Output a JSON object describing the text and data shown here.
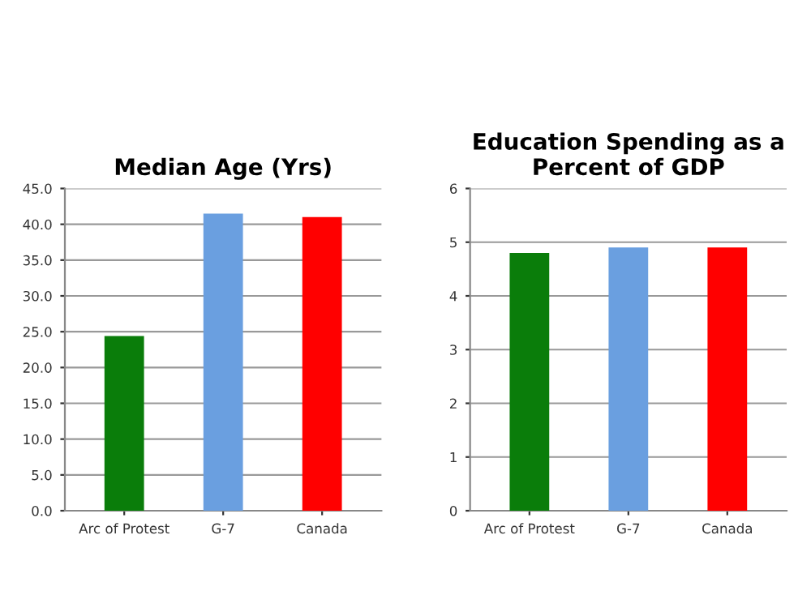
{
  "chart_data": [
    {
      "type": "bar",
      "title": "Median Age (Yrs)",
      "categories": [
        "Arc of Protest",
        "G-7",
        "Canada"
      ],
      "values": [
        24.4,
        41.5,
        41.0
      ],
      "colors": [
        "#0a7d0a",
        "#6a9fe0",
        "#ff0000"
      ],
      "ylim": [
        0,
        45
      ],
      "yticks": [
        {
          "value": 0,
          "label": "0.0"
        },
        {
          "value": 5,
          "label": "5.0"
        },
        {
          "value": 10,
          "label": "10.0"
        },
        {
          "value": 15,
          "label": "15.0"
        },
        {
          "value": 20,
          "label": "20.0"
        },
        {
          "value": 25,
          "label": "25.0"
        },
        {
          "value": 30,
          "label": "30.0"
        },
        {
          "value": 35,
          "label": "35.0"
        },
        {
          "value": 40,
          "label": "40.0"
        },
        {
          "value": 45,
          "label": "45.0"
        }
      ],
      "grid": "y"
    },
    {
      "type": "bar",
      "title": "Education Spending as a Percent of GDP",
      "categories": [
        "Arc of Protest",
        "G-7",
        "Canada"
      ],
      "values": [
        4.8,
        4.9,
        4.9
      ],
      "colors": [
        "#0a7d0a",
        "#6a9fe0",
        "#ff0000"
      ],
      "ylim": [
        0,
        6
      ],
      "yticks": [
        0,
        1,
        2,
        3,
        4,
        5,
        6
      ],
      "grid": "y"
    }
  ]
}
